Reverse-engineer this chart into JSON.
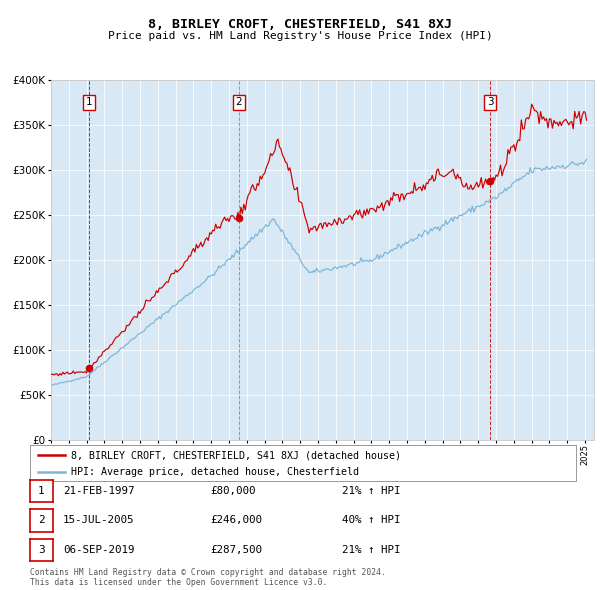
{
  "title": "8, BIRLEY CROFT, CHESTERFIELD, S41 8XJ",
  "subtitle": "Price paid vs. HM Land Registry's House Price Index (HPI)",
  "legend_line1": "8, BIRLEY CROFT, CHESTERFIELD, S41 8XJ (detached house)",
  "legend_line2": "HPI: Average price, detached house, Chesterfield",
  "footer1": "Contains HM Land Registry data © Crown copyright and database right 2024.",
  "footer2": "This data is licensed under the Open Government Licence v3.0.",
  "transactions": [
    {
      "num": 1,
      "date": "21-FEB-1997",
      "year": 1997.13,
      "price": 80000,
      "pct": "21%",
      "arrow": "↑"
    },
    {
      "num": 2,
      "date": "15-JUL-2005",
      "year": 2005.54,
      "price": 246000,
      "pct": "40%",
      "arrow": "↑"
    },
    {
      "num": 3,
      "date": "06-SEP-2019",
      "year": 2019.68,
      "price": 287500,
      "pct": "21%",
      "arrow": "↑"
    }
  ],
  "vline_colors": [
    "#cc0000",
    "#888888",
    "#cc0000"
  ],
  "hpi_color": "#7ab5d8",
  "price_color": "#cc0000",
  "dot_color": "#cc0000",
  "bg_color": "#d8e8f4",
  "ylim": [
    0,
    400000
  ],
  "yticks": [
    0,
    50000,
    100000,
    150000,
    200000,
    250000,
    300000,
    350000,
    400000
  ],
  "xlim_start": 1995.0,
  "xlim_end": 2025.5
}
